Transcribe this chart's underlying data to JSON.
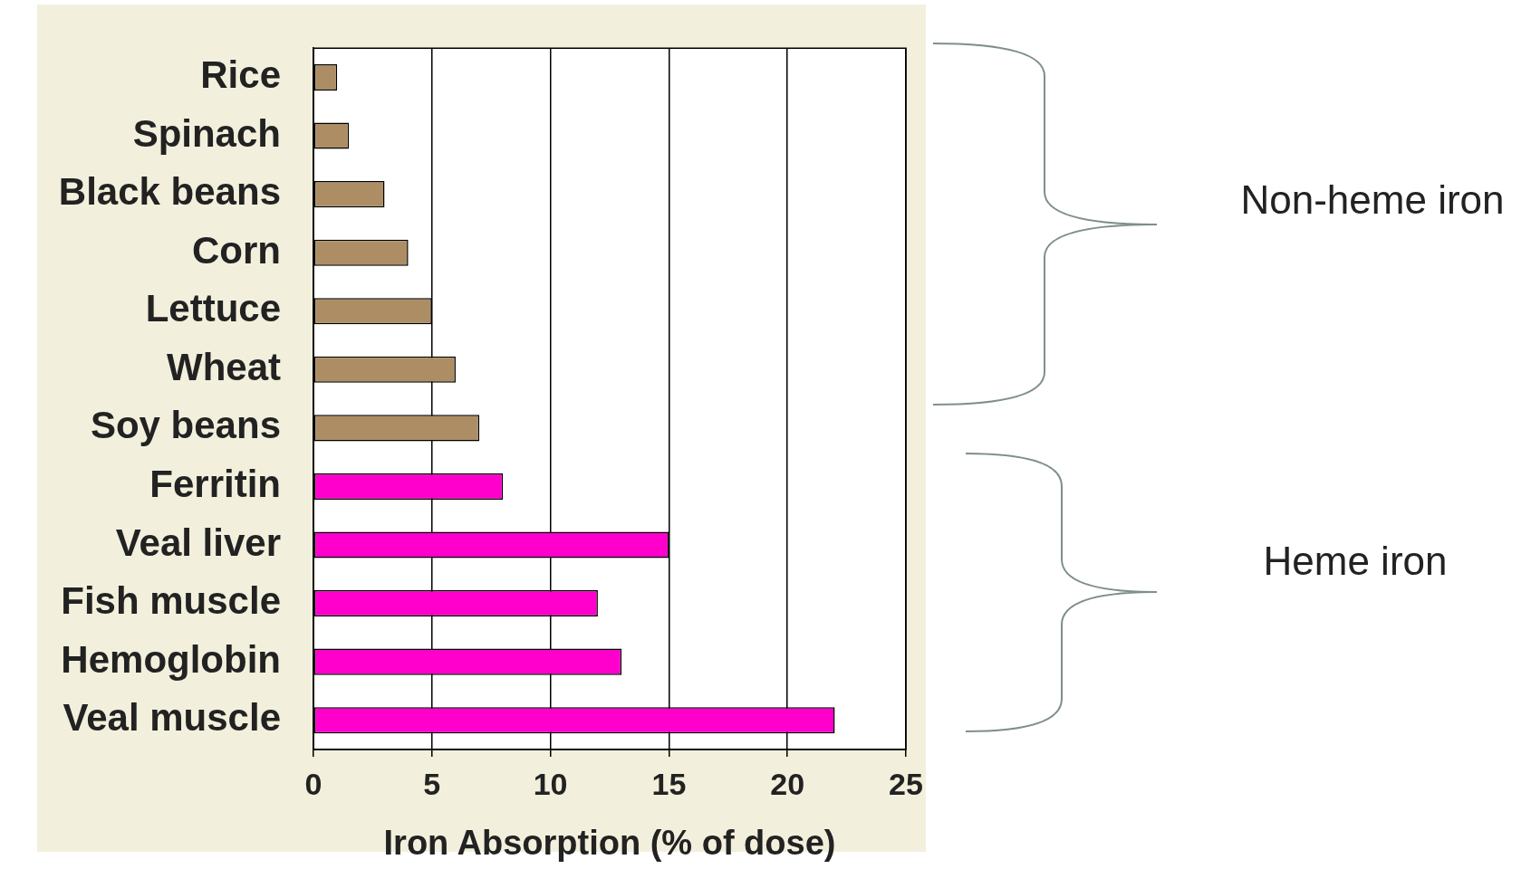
{
  "chart_data": {
    "type": "bar",
    "orientation": "horizontal",
    "xlabel": "Iron Absorption (% of dose)",
    "categories": [
      "Rice",
      "Spinach",
      "Black beans",
      "Corn",
      "Lettuce",
      "Wheat",
      "Soy beans",
      "Ferritin",
      "Veal liver",
      "Fish muscle",
      "Hemoglobin",
      "Veal muscle"
    ],
    "values": [
      1,
      1.5,
      3,
      4,
      5,
      6,
      7,
      8,
      15,
      12,
      13,
      22
    ],
    "colors": [
      "#ad8e64",
      "#ad8e64",
      "#ad8e64",
      "#ad8e64",
      "#ad8e64",
      "#ad8e64",
      "#ad8e64",
      "#ff00cc",
      "#ff00cc",
      "#ff00cc",
      "#ff00cc",
      "#ff00cc"
    ],
    "xlim": [
      0,
      25
    ],
    "xticks": [
      0,
      5,
      10,
      15,
      20,
      25
    ],
    "grid": "x",
    "legend": false,
    "annotations": [
      "Non-heme iron",
      "Heme iron"
    ]
  }
}
